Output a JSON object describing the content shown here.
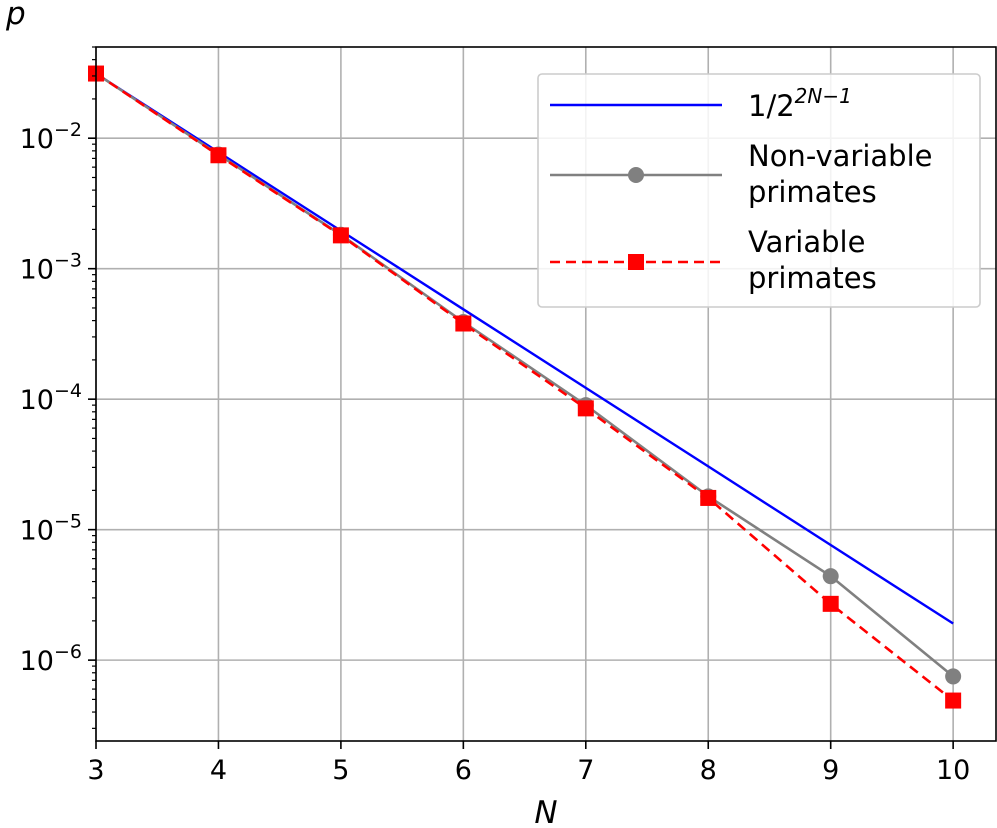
{
  "chart_data": {
    "type": "line",
    "xlabel": "N",
    "ylabel": "p",
    "x_ticks": [
      "3",
      "4",
      "5",
      "6",
      "7",
      "8",
      "9",
      "10"
    ],
    "y_ticks": [
      {
        "value": 1e-06,
        "base": "10",
        "exp": "−6"
      },
      {
        "value": 1e-05,
        "base": "10",
        "exp": "−5"
      },
      {
        "value": 0.0001,
        "base": "10",
        "exp": "−4"
      },
      {
        "value": 0.001,
        "base": "10",
        "exp": "−3"
      },
      {
        "value": 0.01,
        "base": "10",
        "exp": "−2"
      }
    ],
    "xlim": [
      3,
      10.35
    ],
    "ylim": [
      2.4e-07,
      0.05
    ],
    "yscale": "log",
    "grid": true,
    "legend_position": "top-right",
    "series": [
      {
        "legend_base": "1/2",
        "legend_sup": "2N−1",
        "color": "#0000ff",
        "line_style": "solid",
        "marker": "none",
        "x": [
          3,
          4,
          5,
          6,
          7,
          8,
          9,
          10
        ],
        "y": [
          0.03125,
          0.0078125,
          0.001953125,
          0.00048828125,
          0.0001220703125,
          3.0517578125e-05,
          7.62939453125e-06,
          1.9073486328125e-06
        ]
      },
      {
        "legend_lines": [
          "Non-variable",
          "primates"
        ],
        "color": "#808080",
        "line_style": "solid",
        "marker": "circle",
        "x": [
          3,
          4,
          5,
          6,
          7,
          8,
          9,
          10
        ],
        "y": [
          0.0313,
          0.0075,
          0.00182,
          0.00039,
          9e-05,
          1.8e-05,
          4.4e-06,
          7.5e-07
        ]
      },
      {
        "legend_lines": [
          "Variable",
          "primates"
        ],
        "color": "#ff0000",
        "line_style": "dashed",
        "marker": "square",
        "x": [
          3,
          4,
          5,
          6,
          7,
          8,
          9,
          10
        ],
        "y": [
          0.0313,
          0.0074,
          0.0018,
          0.00038,
          8.5e-05,
          1.75e-05,
          2.7e-06,
          4.9e-07
        ]
      }
    ]
  }
}
